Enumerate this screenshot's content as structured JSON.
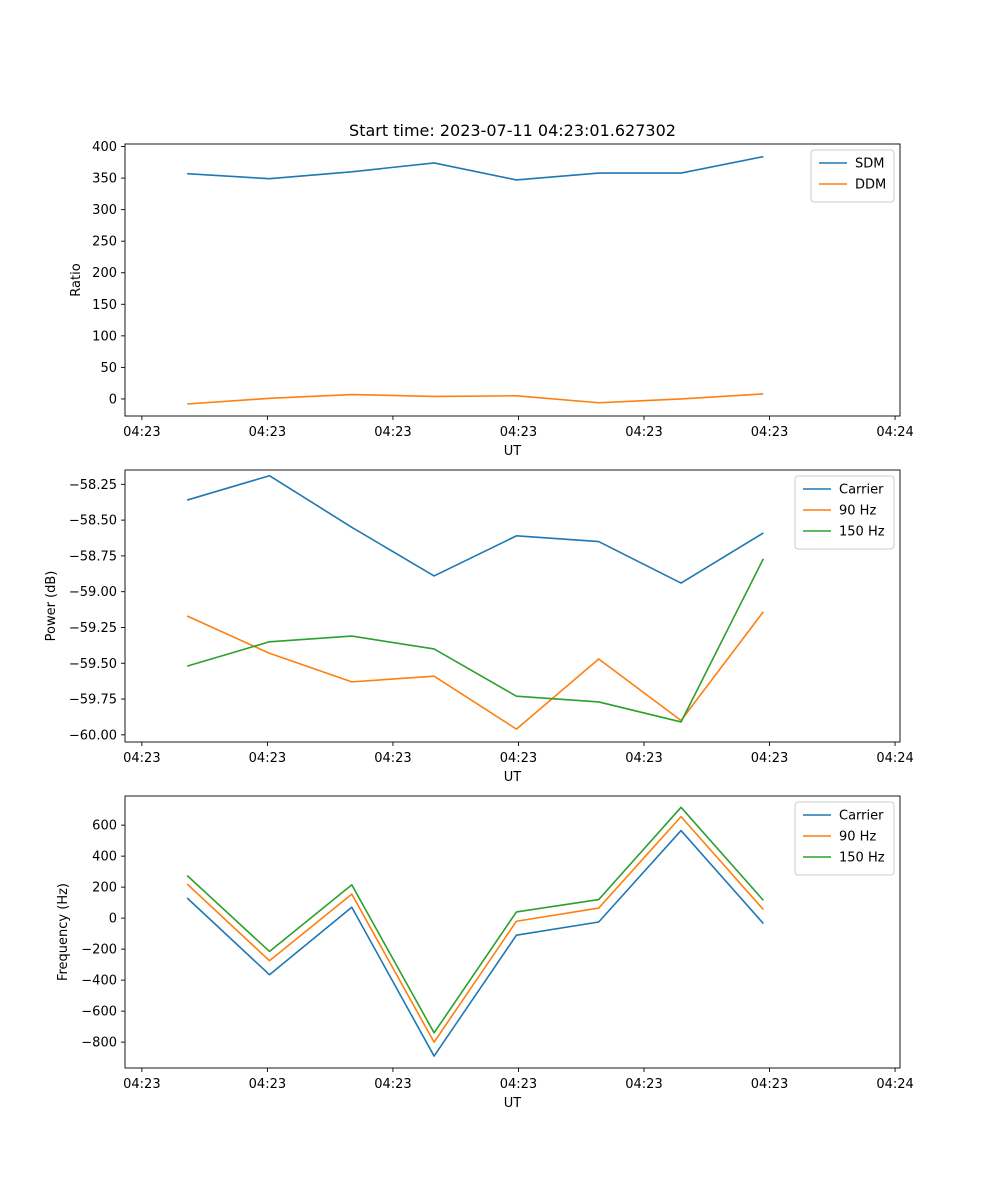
{
  "figure_title": "Start time: 2023-07-11 04:23:01.627302",
  "colors": {
    "c0": "#1f77b4",
    "c1": "#ff7f0e",
    "c2": "#2ca02c"
  },
  "chart_data": [
    {
      "type": "line",
      "title": "Start time: 2023-07-11 04:23:01.627302",
      "xlabel": "UT",
      "ylabel": "Ratio",
      "x": [
        1,
        2,
        3,
        4,
        5,
        6,
        7,
        8
      ],
      "xlim": [
        0.245,
        9.66
      ],
      "ylim": [
        -27,
        404
      ],
      "yticks": [
        0,
        50,
        100,
        150,
        200,
        250,
        300,
        350,
        400
      ],
      "yticklabels": [
        "0",
        "50",
        "100",
        "150",
        "200",
        "250",
        "300",
        "350",
        "400"
      ],
      "xticks": [
        0.45,
        1.975,
        3.5,
        5.025,
        6.55,
        8.075,
        9.6
      ],
      "xticklabels": [
        "04:23",
        "04:23",
        "04:23",
        "04:23",
        "04:23",
        "04:23",
        "04:24"
      ],
      "legend": "top-right",
      "series": [
        {
          "name": "SDM",
          "color": "#1f77b4",
          "values": [
            357,
            349,
            360,
            374,
            347,
            358,
            358,
            384
          ]
        },
        {
          "name": "DDM",
          "color": "#ff7f0e",
          "values": [
            -8,
            1,
            7,
            4,
            5,
            -6,
            0,
            8
          ]
        }
      ]
    },
    {
      "type": "line",
      "title": "",
      "xlabel": "UT",
      "ylabel": "Power (dB)",
      "x": [
        1,
        2,
        3,
        4,
        5,
        6,
        7,
        8
      ],
      "xlim": [
        0.245,
        9.66
      ],
      "ylim": [
        -60.05,
        -58.15
      ],
      "yticks": [
        -60.0,
        -59.75,
        -59.5,
        -59.25,
        -59.0,
        -58.75,
        -58.5,
        -58.25
      ],
      "yticklabels": [
        "−60.00",
        "−59.75",
        "−59.50",
        "−59.25",
        "−59.00",
        "−58.75",
        "−58.50",
        "−58.25"
      ],
      "xticks": [
        0.45,
        1.975,
        3.5,
        5.025,
        6.55,
        8.075,
        9.6
      ],
      "xticklabels": [
        "04:23",
        "04:23",
        "04:23",
        "04:23",
        "04:23",
        "04:23",
        "04:24"
      ],
      "legend": "top-right",
      "series": [
        {
          "name": "Carrier",
          "color": "#1f77b4",
          "values": [
            -58.36,
            -58.19,
            -58.55,
            -58.89,
            -58.61,
            -58.65,
            -58.94,
            -58.59
          ]
        },
        {
          "name": "90 Hz",
          "color": "#ff7f0e",
          "values": [
            -59.17,
            -59.43,
            -59.63,
            -59.59,
            -59.96,
            -59.47,
            -59.9,
            -59.14
          ]
        },
        {
          "name": "150 Hz",
          "color": "#2ca02c",
          "values": [
            -59.52,
            -59.35,
            -59.31,
            -59.4,
            -59.73,
            -59.77,
            -59.91,
            -58.77
          ]
        }
      ]
    },
    {
      "type": "line",
      "title": "",
      "xlabel": "UT",
      "ylabel": "Frequency (Hz)",
      "x": [
        1,
        2,
        3,
        4,
        5,
        6,
        7,
        8
      ],
      "xlim": [
        0.245,
        9.66
      ],
      "ylim": [
        -967,
        788
      ],
      "yticks": [
        -800,
        -600,
        -400,
        -200,
        0,
        200,
        400,
        600
      ],
      "yticklabels": [
        "−800",
        "−600",
        "−400",
        "−200",
        "0",
        "200",
        "400",
        "600"
      ],
      "xticks": [
        0.45,
        1.975,
        3.5,
        5.025,
        6.55,
        8.075,
        9.6
      ],
      "xticklabels": [
        "04:23",
        "04:23",
        "04:23",
        "04:23",
        "04:23",
        "04:23",
        "04:24"
      ],
      "legend": "top-right",
      "series": [
        {
          "name": "Carrier",
          "color": "#1f77b4",
          "values": [
            130,
            -365,
            70,
            -890,
            -110,
            -25,
            565,
            -35
          ]
        },
        {
          "name": "90 Hz",
          "color": "#ff7f0e",
          "values": [
            220,
            -275,
            155,
            -800,
            -20,
            65,
            655,
            55
          ]
        },
        {
          "name": "150 Hz",
          "color": "#2ca02c",
          "values": [
            275,
            -215,
            215,
            -740,
            40,
            120,
            715,
            115
          ]
        }
      ]
    }
  ]
}
